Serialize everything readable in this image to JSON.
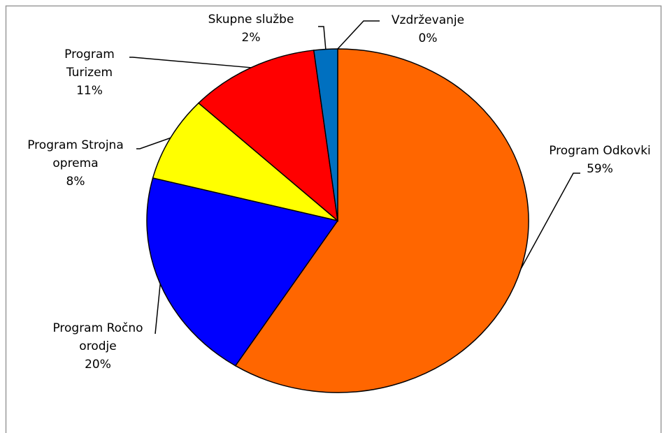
{
  "chart_data": {
    "type": "pie",
    "categories": [
      "Vzdrževanje",
      "Program Odkovki",
      "Program Ročno orodje",
      "Program Strojna oprema",
      "Program Turizem",
      "Skupne službe"
    ],
    "values": [
      0,
      59,
      20,
      8,
      11,
      2
    ],
    "value_labels": [
      "0%",
      "59%",
      "20%",
      "8%",
      "11%",
      "2%"
    ],
    "colors": [
      "#999999",
      "#ff6600",
      "#0000ff",
      "#ffff00",
      "#ff0000",
      "#0070c0"
    ]
  }
}
